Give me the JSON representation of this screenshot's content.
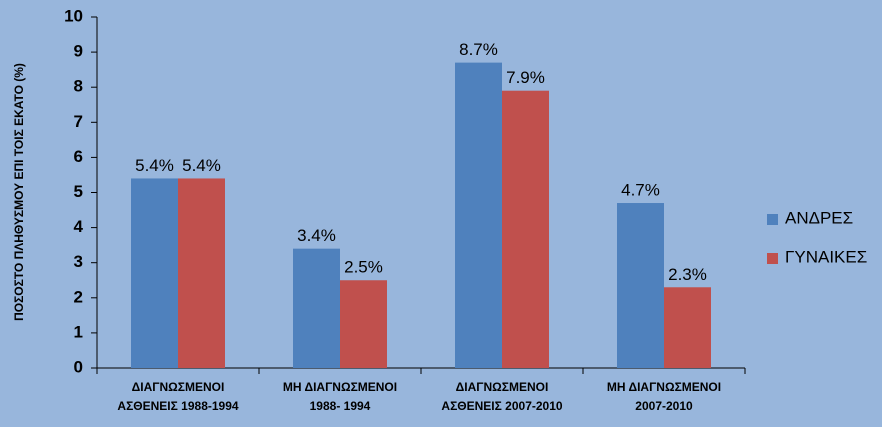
{
  "chart_data": {
    "type": "bar",
    "y_label": "ΠΟΣΟΣΤΟ ΠΛΗΘΥΣΜΟΥ ΕΠΙ ΤΟΙΣ ΕΚΑΤΟ (%)",
    "categories": [
      [
        "ΔΙΑΓΝΩΣΜΕΝΟΙ",
        "ΑΣΘΕΝΕΙΣ 1988-1994"
      ],
      [
        "ΜΗ ΔΙΑΓΝΩΣΜΕΝΟΙ",
        "1988- 1994"
      ],
      [
        "ΔΙΑΓΝΩΣΜΕΝΟΙ",
        "ΑΣΘΕΝΕΙΣ 2007-2010"
      ],
      [
        "ΜΗ ΔΙΑΓΝΩΣΜΕΝΟΙ",
        "2007-2010"
      ]
    ],
    "series": [
      {
        "name": "ΑΝΔΡΕΣ",
        "color": "#4f81bd",
        "values": [
          5.4,
          3.4,
          8.7,
          4.7
        ],
        "value_labels": [
          "5.4%",
          "3.4%",
          "8.7%",
          "4.7%"
        ]
      },
      {
        "name": "ΓΥΝΑΙΚΕΣ",
        "color": "#c0504d",
        "values": [
          5.4,
          2.5,
          7.9,
          2.3
        ],
        "value_labels": [
          "5.4%",
          "2.5%",
          "7.9%",
          "2.3%"
        ]
      }
    ],
    "ylim": [
      0,
      10
    ],
    "yticks": [
      0,
      1,
      2,
      3,
      4,
      5,
      6,
      7,
      8,
      9,
      10
    ],
    "legend": "right"
  }
}
